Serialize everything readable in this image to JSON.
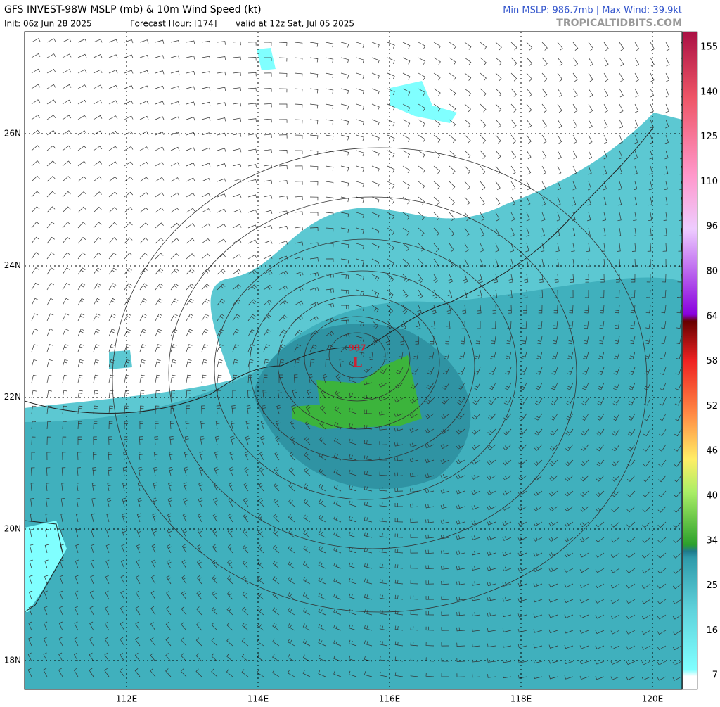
{
  "header": {
    "title": "GFS INVEST-98W MSLP (mb) & 10m Wind Speed (kt)",
    "init": "Init: 06z Jun 28 2025",
    "forecast_hour": "Forecast Hour: [174]",
    "valid": "valid at 12z Sat, Jul 05 2025",
    "stats": "Min MSLP: 986.7mb | Max Wind: 39.9kt",
    "credit": "TROPICALTIDBITS.COM"
  },
  "map": {
    "latitudes": [
      "26N",
      "24N",
      "22N",
      "20N",
      "18N"
    ],
    "longitudes": [
      "112E",
      "114E",
      "116E",
      "118E",
      "120E"
    ],
    "low_pressure": "987",
    "low_symbol": "L"
  },
  "colorbar": {
    "labels": [
      "155",
      "140",
      "125",
      "110",
      "96",
      "80",
      "64",
      "58",
      "52",
      "46",
      "40",
      "34",
      "25",
      "16",
      "7"
    ]
  }
}
